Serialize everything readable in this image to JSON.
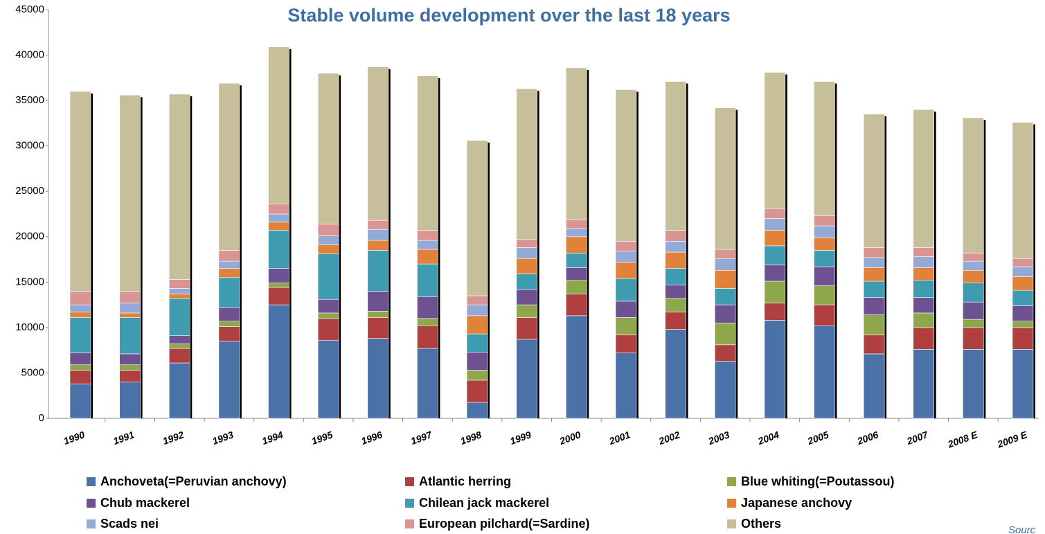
{
  "chart_data": {
    "type": "bar",
    "stacked": true,
    "title": "Stable volume development over the last 18 years",
    "source": "Sourc",
    "categories": [
      "1990",
      "1991",
      "1992",
      "1993",
      "1994",
      "1995",
      "1996",
      "1997",
      "1998",
      "1999",
      "2000",
      "2001",
      "2002",
      "2003",
      "2004",
      "2005",
      "2006",
      "2007",
      "2008 E",
      "2009 E"
    ],
    "series": [
      {
        "name": "Anchoveta(=Peruvian anchovy)",
        "color": "#4a72a8",
        "values": [
          3800,
          4000,
          6100,
          8500,
          12500,
          8600,
          8800,
          7700,
          1750,
          8700,
          11300,
          7200,
          9800,
          6300,
          10800,
          10200,
          7100,
          7600,
          7600,
          7600
        ]
      },
      {
        "name": "Atlantic herring",
        "color": "#b04040",
        "values": [
          1500,
          1300,
          1600,
          1600,
          1900,
          2400,
          2300,
          2500,
          2450,
          2400,
          2400,
          2000,
          1900,
          1800,
          1900,
          2300,
          2100,
          2400,
          2400,
          2400
        ]
      },
      {
        "name": "Blue whiting(=Poutassou)",
        "color": "#8ea74a",
        "values": [
          600,
          600,
          500,
          600,
          500,
          600,
          700,
          800,
          1100,
          1400,
          1500,
          1900,
          1500,
          2400,
          2400,
          2100,
          2200,
          1600,
          900,
          700
        ]
      },
      {
        "name": "Chub mackerel",
        "color": "#6d5191",
        "values": [
          1300,
          1200,
          900,
          1500,
          1600,
          1500,
          2200,
          2400,
          2000,
          1700,
          1400,
          1800,
          1500,
          2000,
          1800,
          2100,
          1900,
          1700,
          1900,
          1700
        ]
      },
      {
        "name": "Chilean jack mackerel",
        "color": "#3f9bb0",
        "values": [
          3900,
          4000,
          4100,
          3300,
          4200,
          5000,
          4500,
          3600,
          2000,
          1700,
          1600,
          2500,
          1800,
          1800,
          2100,
          1800,
          1800,
          1900,
          2100,
          1700
        ]
      },
      {
        "name": "Japanese anchovy",
        "color": "#e0823a",
        "values": [
          600,
          500,
          500,
          1000,
          900,
          1000,
          1100,
          1600,
          2000,
          1700,
          1800,
          1800,
          1800,
          2000,
          1700,
          1400,
          1500,
          1400,
          1400,
          1500
        ]
      },
      {
        "name": "Scads nei",
        "color": "#93a9d6",
        "values": [
          800,
          1100,
          600,
          800,
          900,
          1000,
          1200,
          1000,
          1200,
          1200,
          900,
          1200,
          1200,
          1300,
          1300,
          1300,
          1100,
          1200,
          1000,
          1100
        ]
      },
      {
        "name": "European pilchard(=Sardine)",
        "color": "#d99594",
        "values": [
          1500,
          1300,
          1000,
          1200,
          1100,
          1300,
          1000,
          1100,
          1000,
          900,
          1000,
          1100,
          1200,
          1000,
          1100,
          1100,
          1100,
          1000,
          900,
          900
        ]
      },
      {
        "name": "Others",
        "color": "#c6bf99",
        "values": [
          22000,
          21600,
          20400,
          18400,
          17300,
          16600,
          16900,
          17000,
          17100,
          16600,
          16700,
          16700,
          16400,
          15600,
          15000,
          14800,
          14700,
          15200,
          14900,
          15000
        ]
      }
    ],
    "ylim": [
      0,
      45000
    ],
    "yticks": [
      0,
      5000,
      10000,
      15000,
      20000,
      25000,
      30000,
      35000,
      40000,
      45000
    ]
  }
}
